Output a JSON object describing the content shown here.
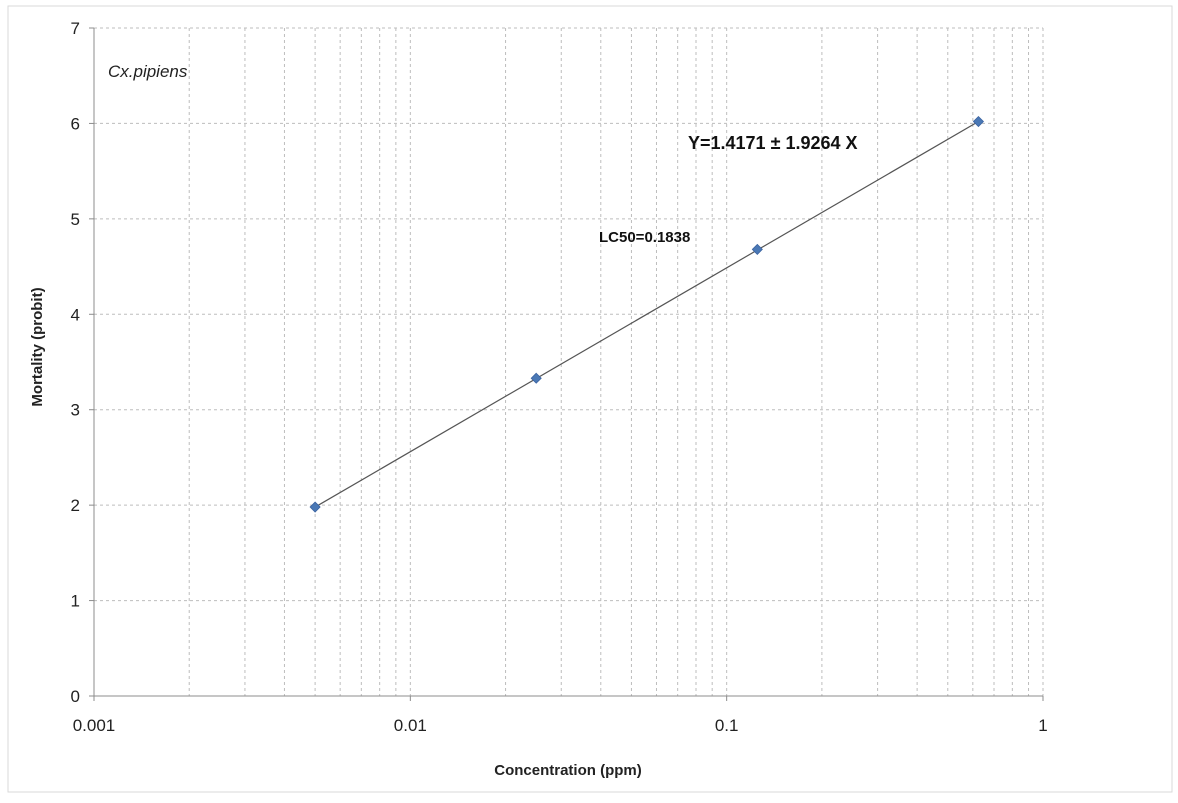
{
  "chart_data": {
    "type": "scatter",
    "xscale": "log",
    "xlim": [
      0.001,
      1
    ],
    "ylim": [
      0,
      7
    ],
    "xlabel": "Concentration (ppm)",
    "ylabel": "Mortality (probit)",
    "x_tick_labels": [
      "0.001",
      "0.01",
      "0.1",
      "1"
    ],
    "y_tick_labels": [
      "0",
      "1",
      "2",
      "3",
      "4",
      "5",
      "6",
      "7"
    ],
    "grid": true,
    "grid_style": "dashed",
    "points": [
      {
        "x": 0.005,
        "y": 1.98
      },
      {
        "x": 0.025,
        "y": 3.33
      },
      {
        "x": 0.125,
        "y": 4.68
      },
      {
        "x": 0.625,
        "y": 6.02
      }
    ],
    "trendline": {
      "x": [
        0.005,
        0.625
      ],
      "y": [
        1.98,
        6.02
      ]
    },
    "annotations": {
      "species": "Cx.pipiens",
      "equation": "Y=1.4171 ± 1.9264 X",
      "lc50": "LC50=0.1838"
    },
    "colors": {
      "marker": "#4a78b5",
      "line": "#555555",
      "grid": "#bdbdbd",
      "axis": "#8c8c8c"
    }
  }
}
